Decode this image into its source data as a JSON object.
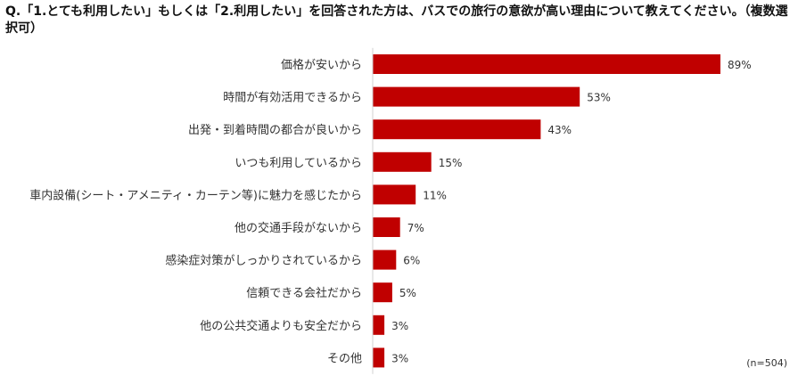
{
  "question": "Q.「1.とても利用したい」もしくは「2.利用したい」を回答された方は、バスでの旅行の意欲が高い理由について教えてください。（複数選択可）",
  "note": "(n=504)",
  "colors": {
    "bar": "#c00000"
  },
  "chart_data": {
    "type": "bar",
    "orientation": "horizontal",
    "categories": [
      "価格が安いから",
      "時間が有効活用できるから",
      "出発・到着時間の都合が良いから",
      "いつも利用しているから",
      "車内設備(シート・アメニティ・カーテン等)に魅力を感じたから",
      "他の交通手段がないから",
      "感染症対策がしっかりされているから",
      "信頼できる会社だから",
      "他の公共交通よりも安全だから",
      "その他"
    ],
    "values": [
      89,
      53,
      43,
      15,
      11,
      7,
      6,
      5,
      3,
      3
    ],
    "value_labels": [
      "89%",
      "53%",
      "43%",
      "15%",
      "11%",
      "7%",
      "6%",
      "5%",
      "3%",
      "3%"
    ],
    "unit": "%",
    "xlim": [
      0,
      100
    ],
    "grid": false,
    "legend": "none"
  }
}
